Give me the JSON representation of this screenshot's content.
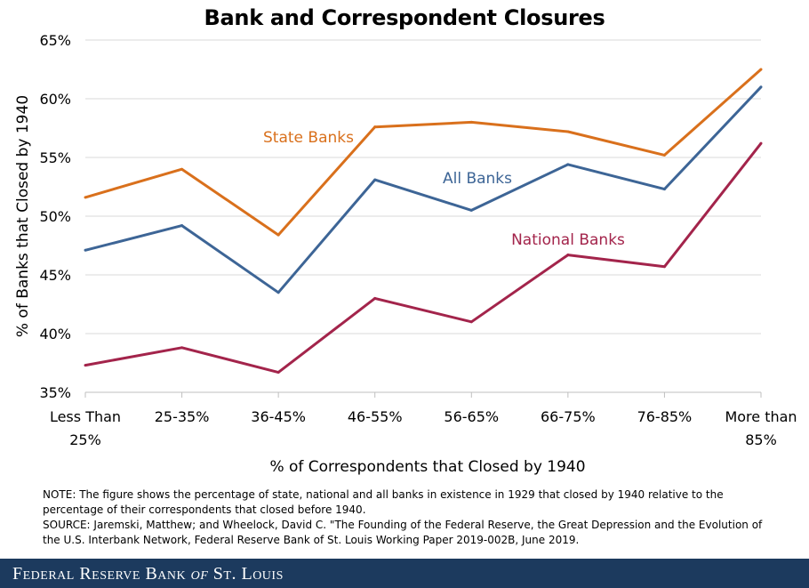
{
  "chart_data": {
    "type": "line",
    "title": "Bank and Correspondent Closures",
    "xlabel": "% of Correspondents that Closed by 1940",
    "ylabel": "% of Banks that Closed by 1940",
    "categories": [
      [
        "Less Than",
        "25%"
      ],
      [
        "25-35%"
      ],
      [
        "36-45%"
      ],
      [
        "46-55%"
      ],
      [
        "56-65%"
      ],
      [
        "66-75%"
      ],
      [
        "76-85%"
      ],
      [
        "More than",
        "85%"
      ]
    ],
    "ylim": [
      35,
      65
    ],
    "yticks": [
      35,
      40,
      45,
      50,
      55,
      60,
      65
    ],
    "ytick_labels": [
      "35%",
      "40%",
      "45%",
      "50%",
      "55%",
      "60%",
      "65%"
    ],
    "grid": true,
    "series": [
      {
        "name": "State Banks",
        "color": "#d9701c",
        "values": [
          51.6,
          54.0,
          48.4,
          57.6,
          58.0,
          57.2,
          55.2,
          62.5
        ]
      },
      {
        "name": "All Banks",
        "color": "#3d6596",
        "values": [
          47.1,
          49.2,
          43.5,
          53.1,
          50.5,
          54.4,
          52.3,
          61.0
        ]
      },
      {
        "name": "National Banks",
        "color": "#a3244b",
        "values": [
          37.3,
          38.8,
          36.7,
          43.0,
          41.0,
          46.7,
          45.7,
          56.2
        ]
      }
    ]
  },
  "note": {
    "line1": "NOTE: The figure shows the percentage of state, national and all banks in existence in 1929 that closed by 1940 relative to the percentage of their correspondents that closed before 1940.",
    "line2": "SOURCE: Jaremski, Matthew;  and Wheelock, David C. \"The Founding of the Federal Reserve, the Great Depression and the Evolution of the U.S. Interbank Network,  Federal Reserve Bank of St. Louis Working Paper 2019-002B, June 2019."
  },
  "footer": {
    "text_main": "Federal Reserve Bank",
    "text_of": "of",
    "text_end": "St. Louis"
  }
}
